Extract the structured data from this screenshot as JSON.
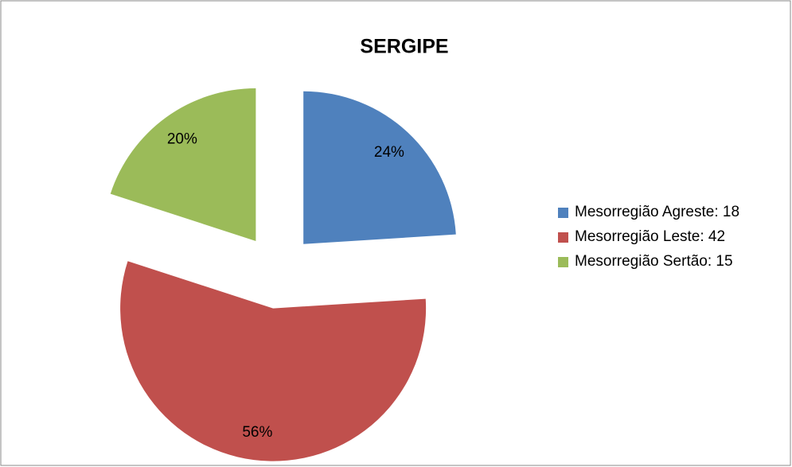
{
  "chart_data": {
    "type": "pie",
    "title": "SERGIPE",
    "categories": [
      "Mesorregião Agreste: 18",
      "Mesorregião Leste: 42",
      "Mesorregião Sertão: 15"
    ],
    "values": [
      18,
      42,
      15
    ],
    "value_labels": [
      "24%",
      "56%",
      "20%"
    ],
    "colors": [
      "#4f81bd",
      "#c0504d",
      "#9bbb59"
    ],
    "legend": "right"
  }
}
